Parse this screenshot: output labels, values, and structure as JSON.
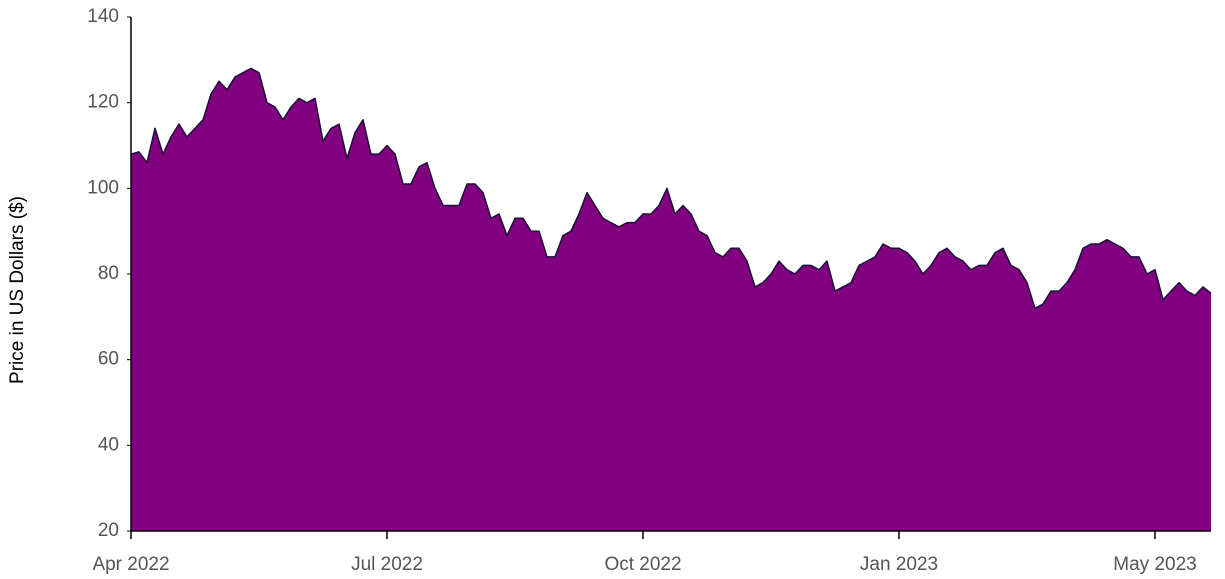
{
  "chart_data": {
    "type": "area",
    "y_label": "Price in US Dollars ($)",
    "color": "#800080",
    "line_color": "#1a1036",
    "values": [
      108,
      108.5,
      106,
      114,
      108,
      112,
      115,
      112,
      114,
      116,
      122,
      125,
      123,
      126,
      127,
      128,
      127,
      120,
      119,
      116,
      119,
      121,
      120,
      121,
      111,
      114,
      115,
      107,
      113,
      116,
      108,
      108,
      110,
      108,
      101,
      101,
      105,
      106,
      100,
      96,
      96,
      96,
      101,
      101,
      99,
      93,
      94,
      89,
      93,
      93,
      90,
      90,
      84,
      84,
      89,
      90,
      94,
      99,
      96,
      93,
      92,
      91,
      92,
      92,
      94,
      94,
      96,
      100,
      94,
      96,
      94,
      90,
      89,
      85,
      84,
      86,
      86,
      83,
      77,
      78,
      80,
      83,
      81,
      80,
      82,
      82,
      81,
      83,
      76,
      77,
      78,
      82,
      83,
      84,
      87,
      86,
      86,
      85,
      83,
      80,
      82,
      85,
      86,
      84,
      83,
      81,
      82,
      82,
      85,
      86,
      82,
      81,
      78,
      72,
      73,
      76,
      76,
      78,
      81,
      86,
      87,
      87,
      88,
      87,
      86,
      84,
      84,
      80,
      81,
      74,
      76,
      78,
      76,
      75,
      77,
      75.5
    ],
    "xticks": [
      {
        "value": 0,
        "label": "Apr 2022"
      },
      {
        "value": 32,
        "label": "Jul 2022"
      },
      {
        "value": 64,
        "label": "Oct 2022"
      },
      {
        "value": 96,
        "label": "Jan 2023"
      },
      {
        "value": 128,
        "label": "May 2023"
      }
    ],
    "ylim": [
      20,
      140
    ],
    "yticks": [
      20,
      40,
      60,
      80,
      100,
      120,
      140
    ],
    "grid": false
  }
}
